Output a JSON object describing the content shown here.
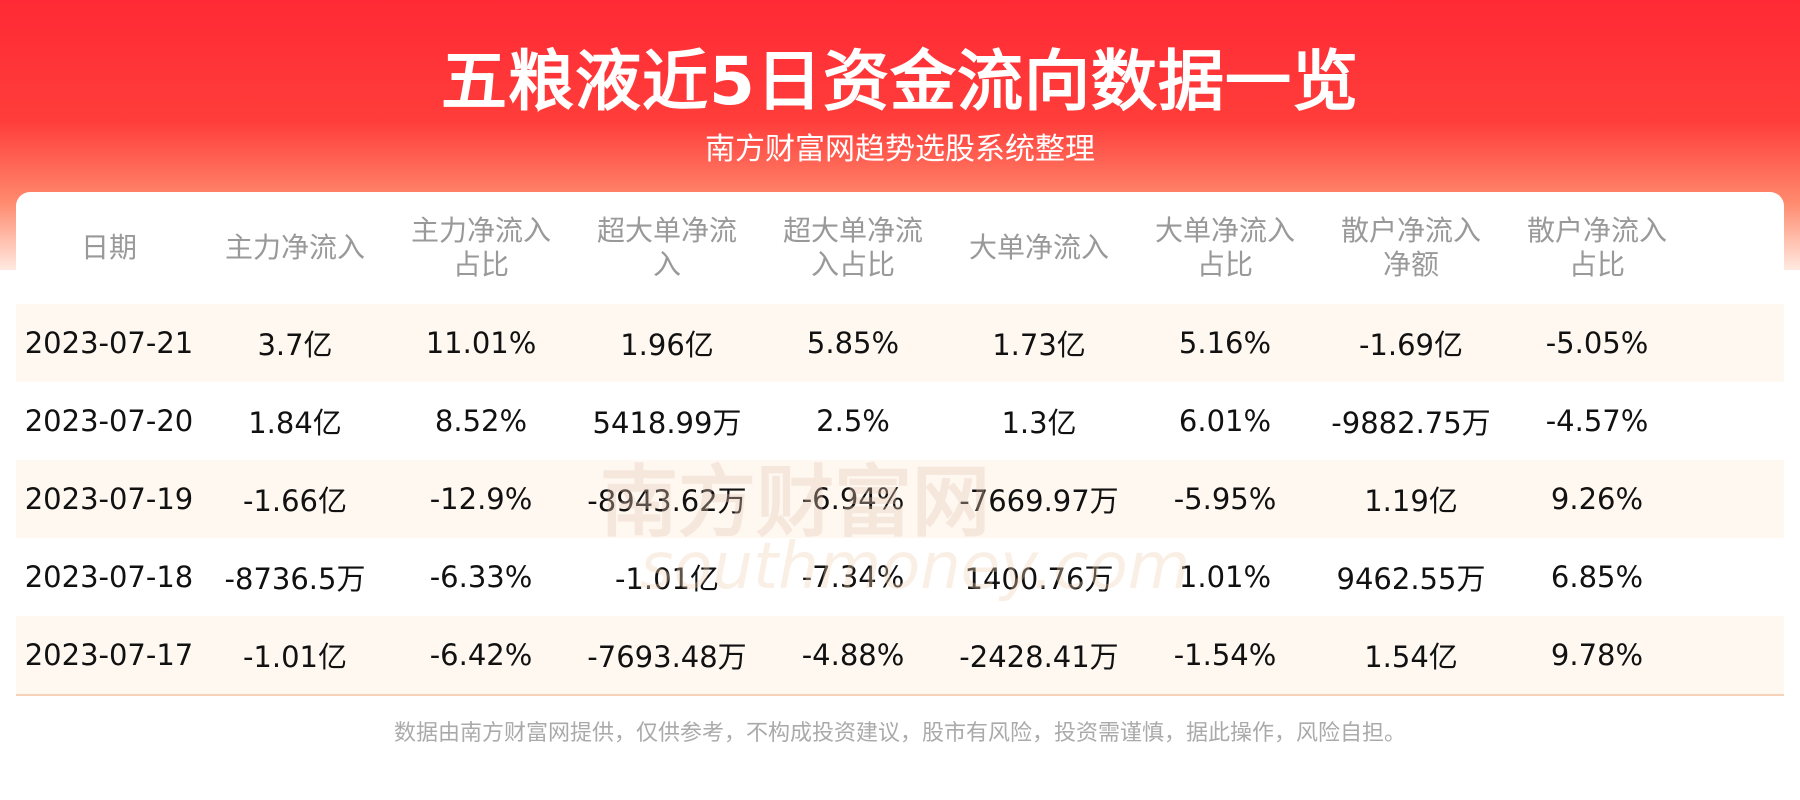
{
  "header": {
    "title": "五粮液近5日资金流向数据一览",
    "subtitle": "南方财富网趋势选股系统整理"
  },
  "table": {
    "headers": [
      "日期",
      "主力净流入",
      "主力净流入占比",
      "超大单净流入",
      "超大单净流入占比",
      "大单净流入",
      "大单净流入占比",
      "散户净流入净额",
      "散户净流入占比"
    ],
    "rows": [
      [
        "2023-07-21",
        "3.7亿",
        "11.01%",
        "1.96亿",
        "5.85%",
        "1.73亿",
        "5.16%",
        "-1.69亿",
        "-5.05%"
      ],
      [
        "2023-07-20",
        "1.84亿",
        "8.52%",
        "5418.99万",
        "2.5%",
        "1.3亿",
        "6.01%",
        "-9882.75万",
        "-4.57%"
      ],
      [
        "2023-07-19",
        "-1.66亿",
        "-12.9%",
        "-8943.62万",
        "-6.94%",
        "-7669.97万",
        "-5.95%",
        "1.19亿",
        "9.26%"
      ],
      [
        "2023-07-18",
        "-8736.5万",
        "-6.33%",
        "-1.01亿",
        "-7.34%",
        "1400.76万",
        "1.01%",
        "9462.55万",
        "6.85%"
      ],
      [
        "2023-07-17",
        "-1.01亿",
        "-6.42%",
        "-7693.48万",
        "-4.88%",
        "-2428.41万",
        "-1.54%",
        "1.54亿",
        "9.78%"
      ]
    ]
  },
  "watermark": {
    "name": "南方财富网",
    "domain": "southmoney.com"
  },
  "footer": "数据由南方财富网提供，仅供参考，不构成投资建议，股市有风险，投资需谨慎，据此操作，风险自担。"
}
